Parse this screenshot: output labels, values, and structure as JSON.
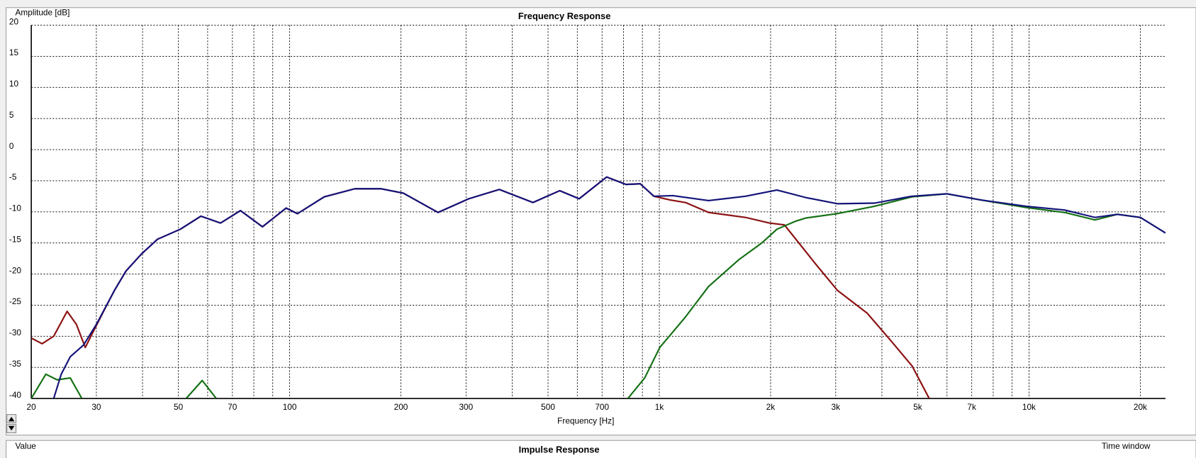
{
  "chart_data": {
    "type": "line",
    "title": "Frequency Response",
    "ylabel": "Amplitude [dB]",
    "xlabel": "Frequency [Hz]",
    "xscale": "log",
    "grid": true,
    "xlim": [
      20,
      23400
    ],
    "ylim": [
      -40,
      20
    ],
    "yticks": [
      20,
      15,
      10,
      5,
      0,
      -5,
      -10,
      -15,
      -20,
      -25,
      -30,
      -35,
      -40
    ],
    "xticks": [
      20,
      30,
      50,
      70,
      100,
      200,
      300,
      500,
      700,
      {
        "value": 1000,
        "label": "1k"
      },
      {
        "value": 2000,
        "label": "2k"
      },
      {
        "value": 3000,
        "label": "3k"
      },
      {
        "value": 5000,
        "label": "5k"
      },
      {
        "value": 7000,
        "label": "7k"
      },
      {
        "value": 10000,
        "label": "10k"
      },
      {
        "value": 20000,
        "label": "20k"
      }
    ],
    "xgrid_minor": [
      40,
      60,
      80,
      90,
      400,
      600,
      800,
      900,
      4000,
      6000,
      8000,
      9000
    ],
    "series": [
      {
        "color": "#8b1010",
        "x": [
          20,
          21.4,
          23,
          25,
          26.5,
          28,
          29,
          32,
          33.6,
          36.1,
          39.7,
          43.9,
          50.6,
          57.5,
          65,
          73.6,
          84.4,
          97.8,
          105,
          124,
          150,
          177,
          203,
          252,
          305,
          369,
          455,
          538,
          607,
          720,
          812,
          888,
          967,
          1070,
          1177,
          1359,
          1710,
          1985,
          2180,
          2640,
          3030,
          3650,
          4200,
          4830,
          5370
        ],
        "values": [
          -30.3,
          -31.2,
          -30,
          -26,
          -28.1,
          -31.8,
          -30,
          -25,
          -22.6,
          -19.5,
          -16.8,
          -14.4,
          -12.8,
          -10.7,
          -11.8,
          -9.8,
          -12.4,
          -9.4,
          -10.3,
          -7.6,
          -6.3,
          -6.3,
          -7,
          -10.1,
          -7.9,
          -6.4,
          -8.5,
          -6.6,
          -7.9,
          -4.4,
          -5.6,
          -5.5,
          -7.5,
          -8.1,
          -8.5,
          -10.1,
          -10.9,
          -11.8,
          -12.1,
          -18.3,
          -22.6,
          -26.3,
          -30.5,
          -34.8,
          -40
        ]
      },
      {
        "color": "#137013",
        "x": [
          20,
          21.9,
          23.5,
          25.5,
          27.4,
          null,
          52.5,
          58,
          63.3,
          null,
          822,
          913,
          1003,
          1177,
          1359,
          1640,
          1893,
          2080,
          2340,
          2490,
          3030,
          3820,
          4820,
          5990,
          7410,
          9820,
          12470,
          15080,
          17340,
          20000,
          23400
        ],
        "values": [
          -40,
          -36.1,
          -37,
          -36.7,
          -40,
          null,
          -40,
          -37.1,
          -40,
          null,
          -40,
          -36.7,
          -31.8,
          -26.9,
          -22,
          -17.7,
          -15,
          -12.8,
          -11.5,
          -11,
          -10.3,
          -9.1,
          -7.6,
          -7.1,
          -8.1,
          -9.3,
          -10.1,
          -11.3,
          -10.4,
          -10.9,
          -13.4
        ]
      },
      {
        "color": "#13137a",
        "x": [
          23,
          24.1,
          25.5,
          27.7,
          30,
          33.6,
          36.1,
          39.7,
          43.9,
          50.6,
          57.5,
          65,
          73.6,
          84.4,
          97.8,
          105,
          124,
          150,
          177,
          203,
          252,
          305,
          369,
          455,
          538,
          607,
          720,
          812,
          888,
          967,
          1087,
          1359,
          1710,
          2080,
          2490,
          3030,
          3820,
          4820,
          5990,
          7410,
          9820,
          12470,
          15080,
          17340,
          20000,
          23400
        ],
        "values": [
          -40,
          -36.1,
          -33.3,
          -31.4,
          -28.1,
          -22.6,
          -19.5,
          -16.8,
          -14.4,
          -12.8,
          -10.7,
          -11.8,
          -9.8,
          -12.4,
          -9.4,
          -10.3,
          -7.6,
          -6.3,
          -6.3,
          -7,
          -10.1,
          -7.9,
          -6.4,
          -8.5,
          -6.6,
          -7.9,
          -4.4,
          -5.6,
          -5.5,
          -7.5,
          -7.4,
          -8.2,
          -7.5,
          -6.5,
          -7.7,
          -8.7,
          -8.6,
          -7.5,
          -7.1,
          -8.1,
          -9.1,
          -9.7,
          -10.9,
          -10.4,
          -10.9,
          -13.4
        ]
      }
    ]
  },
  "impulse_panel": {
    "title": "Impulse Response",
    "ylabel": "Value",
    "right_label": "Time window"
  }
}
